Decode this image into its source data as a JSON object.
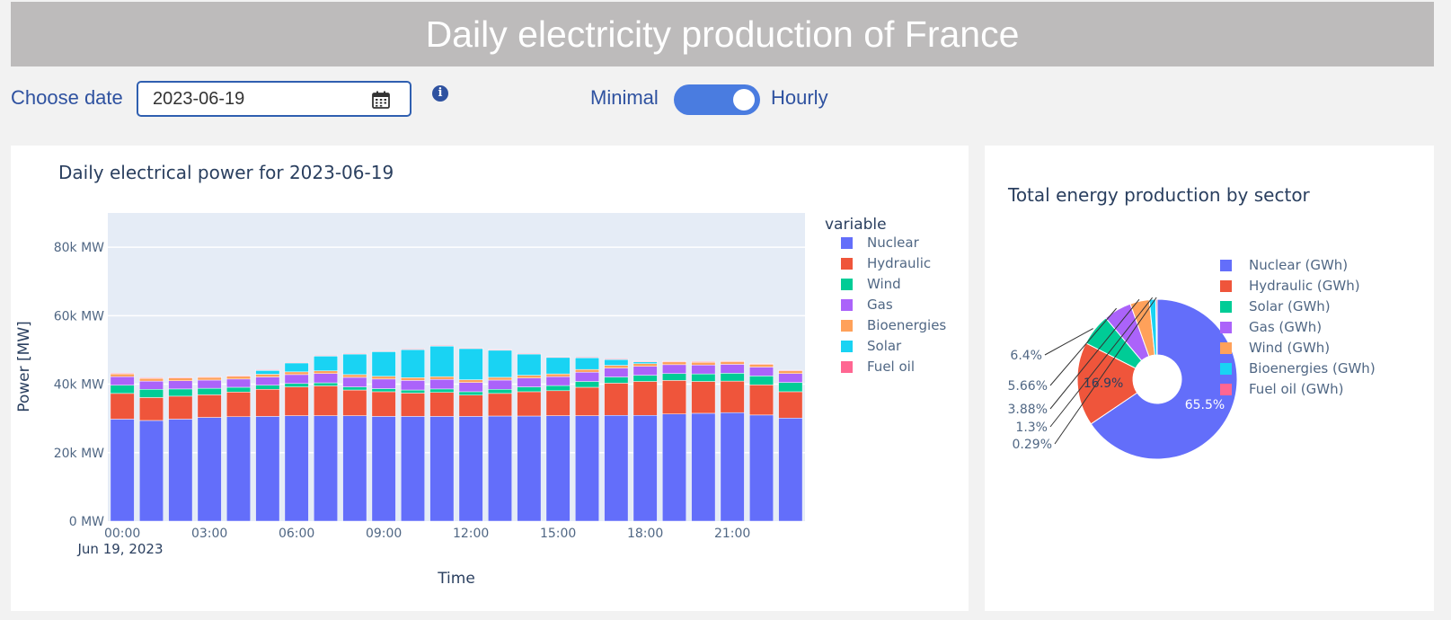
{
  "header": {
    "title": "Daily electricity production of France"
  },
  "controls": {
    "date_label": "Choose date",
    "date_value": "2023-06-19",
    "toggle_left": "Minimal",
    "toggle_right": "Hourly",
    "toggle_on": true
  },
  "bar_card": {
    "title": "Daily electrical power for 2023-06-19",
    "legend_title": "variable"
  },
  "pie_card": {
    "title": "Total energy production by sector"
  },
  "chart_data": [
    {
      "type": "bar",
      "stacked": true,
      "title": "Daily electrical power for 2023-06-19",
      "xlabel": "Time",
      "ylabel": "Power [MW]",
      "ylim": [
        0,
        90000
      ],
      "yticks": [
        0,
        20000,
        40000,
        60000,
        80000
      ],
      "ytick_labels": [
        "0 MW",
        "20k MW",
        "40k MW",
        "60k MW",
        "80k MW"
      ],
      "xtick_labels": [
        "00:00",
        "03:00",
        "06:00",
        "09:00",
        "12:00",
        "15:00",
        "18:00",
        "21:00"
      ],
      "xtick_sublabel": "Jun 19, 2023",
      "legend_title": "variable",
      "categories": [
        "00:00",
        "01:00",
        "02:00",
        "03:00",
        "04:00",
        "05:00",
        "06:00",
        "07:00",
        "08:00",
        "09:00",
        "10:00",
        "11:00",
        "12:00",
        "13:00",
        "14:00",
        "15:00",
        "16:00",
        "17:00",
        "18:00",
        "19:00",
        "20:00",
        "21:00",
        "22:00",
        "23:00"
      ],
      "series": [
        {
          "name": "Nuclear",
          "color": "#636efa",
          "values": [
            29800,
            29400,
            29800,
            30300,
            30500,
            30600,
            30800,
            30800,
            30800,
            30600,
            30600,
            30600,
            30600,
            30700,
            30700,
            30800,
            30800,
            30900,
            30900,
            31300,
            31500,
            31700,
            31000,
            30100
          ]
        },
        {
          "name": "Hydraulic",
          "color": "#ef553b",
          "values": [
            7500,
            6700,
            6700,
            6600,
            7200,
            7900,
            8400,
            8700,
            7500,
            7200,
            6800,
            7000,
            6200,
            6600,
            7100,
            7300,
            8300,
            9400,
            9900,
            9800,
            9300,
            9200,
            8800,
            7700
          ]
        },
        {
          "name": "Wind",
          "color": "#00cc96",
          "values": [
            2400,
            2400,
            2100,
            1900,
            1400,
            1200,
            1000,
            900,
            900,
            900,
            900,
            1000,
            1000,
            1200,
            1400,
            1500,
            1700,
            1800,
            1800,
            2000,
            2200,
            2300,
            2600,
            2700
          ]
        },
        {
          "name": "Gas",
          "color": "#ab63fa",
          "values": [
            2500,
            2400,
            2400,
            2400,
            2400,
            2400,
            2600,
            2700,
            2800,
            2800,
            2800,
            2800,
            2700,
            2700,
            2600,
            2600,
            2700,
            2600,
            2600,
            2600,
            2600,
            2600,
            2600,
            2600
          ]
        },
        {
          "name": "Bioenergies",
          "color": "#ffa15a",
          "values": [
            800,
            800,
            800,
            800,
            800,
            800,
            800,
            800,
            800,
            800,
            800,
            800,
            800,
            800,
            800,
            800,
            800,
            800,
            800,
            800,
            800,
            800,
            800,
            800
          ]
        },
        {
          "name": "Solar",
          "color": "#19d3f3",
          "values": [
            0,
            0,
            0,
            0,
            0,
            1100,
            2600,
            4300,
            6000,
            7200,
            8200,
            8900,
            9100,
            7900,
            6200,
            4800,
            3400,
            1700,
            500,
            0,
            0,
            0,
            0,
            0
          ]
        },
        {
          "name": "Fuel oil",
          "color": "#ff6692",
          "values": [
            200,
            200,
            200,
            200,
            200,
            200,
            200,
            200,
            200,
            200,
            200,
            200,
            200,
            200,
            200,
            200,
            200,
            200,
            200,
            200,
            200,
            200,
            200,
            200
          ]
        }
      ]
    },
    {
      "type": "pie",
      "hole": true,
      "title": "Total energy production by sector",
      "slices": [
        {
          "name": "Nuclear (GWh)",
          "value": 65.5,
          "label": "65.5%",
          "color": "#636efa"
        },
        {
          "name": "Hydraulic (GWh)",
          "value": 16.9,
          "label": "16.9%",
          "color": "#ef553b"
        },
        {
          "name": "Solar (GWh)",
          "value": 6.4,
          "label": "6.4%",
          "color": "#00cc96"
        },
        {
          "name": "Gas (GWh)",
          "value": 5.66,
          "label": "5.66%",
          "color": "#ab63fa"
        },
        {
          "name": "Wind (GWh)",
          "value": 3.88,
          "label": "3.88%",
          "color": "#ffa15a"
        },
        {
          "name": "Bioenergies (GWh)",
          "value": 1.3,
          "label": "1.3%",
          "color": "#19d3f3"
        },
        {
          "name": "Fuel oil (GWh)",
          "value": 0.29,
          "label": "0.29%",
          "color": "#ff6692"
        }
      ]
    }
  ]
}
